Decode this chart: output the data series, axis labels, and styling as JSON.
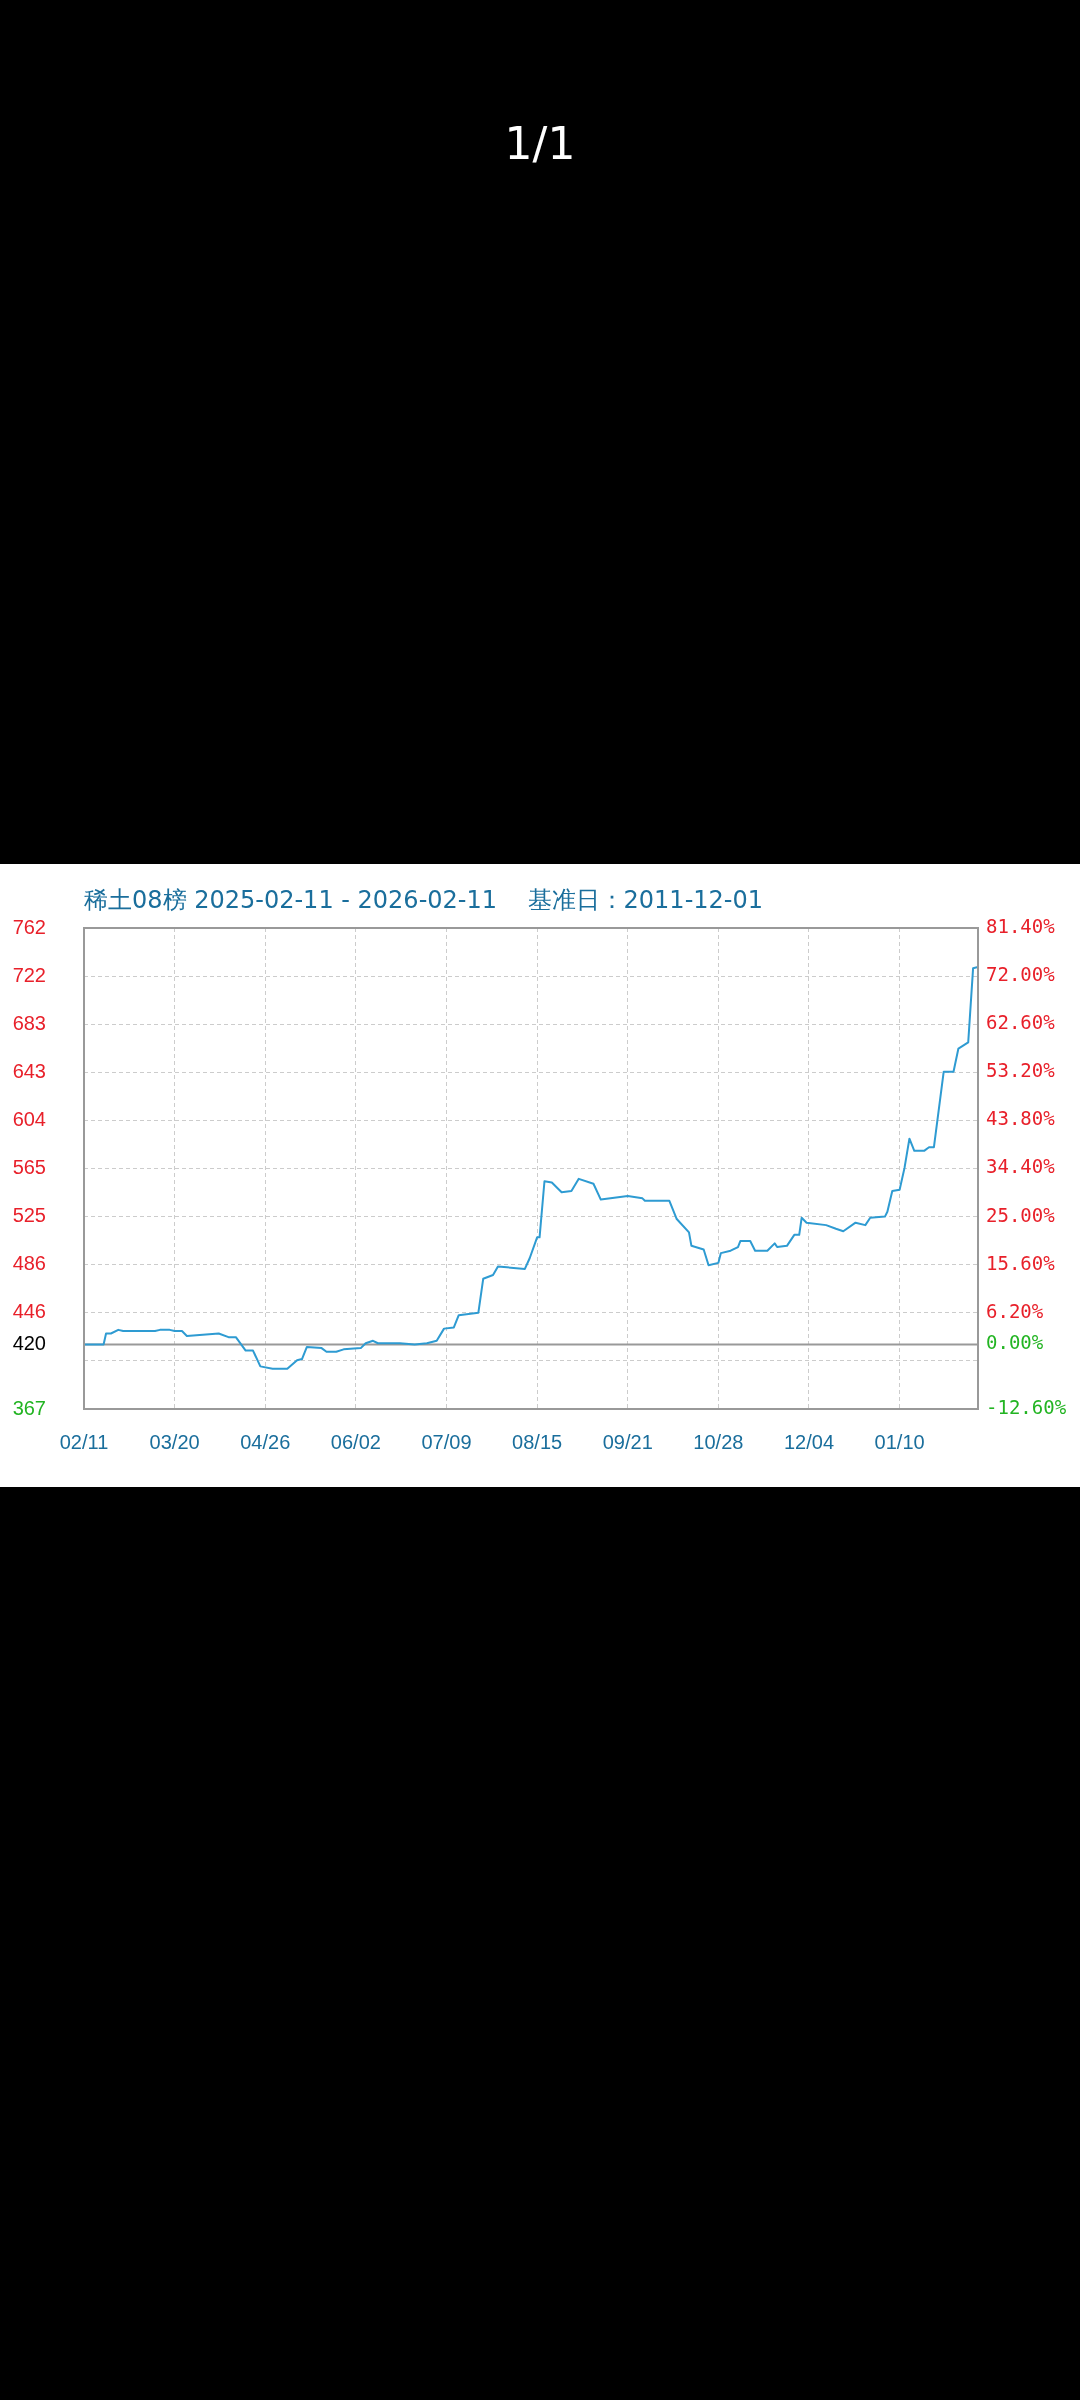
{
  "chart_data": {
    "type": "line",
    "title": "稀土08榜 2025-02-11 - 2026-02-11    基准日：2011-12-01",
    "annotations": [
      "1/1"
    ],
    "color": "#2e9bd2",
    "grid": true,
    "legend": false,
    "marker": "none",
    "line_style": "solid",
    "x": [
      "2025-02-11",
      "2025-02-19",
      "2025-02-20",
      "2025-02-22",
      "2025-02-25",
      "2025-02-27",
      "2025-03-12",
      "2025-03-14",
      "2025-03-18",
      "2025-03-20",
      "2025-03-23",
      "2025-03-25",
      "2025-04-07",
      "2025-04-11",
      "2025-04-14",
      "2025-04-18",
      "2025-04-21",
      "2025-04-24",
      "2025-04-29",
      "2025-05-05",
      "2025-05-09",
      "2025-05-11",
      "2025-05-13",
      "2025-05-19",
      "2025-05-21",
      "2025-05-25",
      "2025-05-28",
      "2025-06-04",
      "2025-06-06",
      "2025-06-09",
      "2025-06-11",
      "2025-06-17",
      "2025-06-20",
      "2025-06-26",
      "2025-07-01",
      "2025-07-05",
      "2025-07-08",
      "2025-07-12",
      "2025-07-14",
      "2025-07-22",
      "2025-07-24",
      "2025-07-28",
      "2025-07-30",
      "2025-08-10",
      "2025-08-12",
      "2025-08-15",
      "2025-08-16",
      "2025-08-18",
      "2025-08-21",
      "2025-08-25",
      "2025-08-29",
      "2025-09-01",
      "2025-09-07",
      "2025-09-10",
      "2025-09-21",
      "2025-09-27",
      "2025-09-28",
      "2025-10-08",
      "2025-10-11",
      "2025-10-16",
      "2025-10-17",
      "2025-10-22",
      "2025-10-24",
      "2025-10-28",
      "2025-10-29",
      "2025-11-02",
      "2025-11-05",
      "2025-11-06",
      "2025-11-10",
      "2025-11-12",
      "2025-11-17",
      "2025-11-20",
      "2025-11-21",
      "2025-11-25",
      "2025-11-28",
      "2025-11-30",
      "2025-12-01",
      "2025-12-03",
      "2025-12-11",
      "2025-12-15",
      "2025-12-18",
      "2025-12-23",
      "2025-12-27",
      "2025-12-29",
      "2026-01-04",
      "2026-01-05",
      "2026-01-07",
      "2026-01-10",
      "2026-01-12",
      "2026-01-14",
      "2026-01-16",
      "2026-01-20",
      "2026-01-22",
      "2026-01-24",
      "2026-01-28",
      "2026-02-01",
      "2026-02-03",
      "2026-02-07",
      "2026-02-09",
      "2026-02-11"
    ],
    "values": [
      420,
      420,
      429,
      429,
      432,
      431,
      431,
      432,
      432,
      431,
      431,
      427,
      429,
      426,
      426,
      415,
      415,
      402,
      400,
      400,
      407,
      408,
      418,
      417,
      414,
      414,
      416,
      417,
      421,
      423,
      421,
      421,
      421,
      420,
      421,
      423,
      433,
      434,
      444,
      446,
      474,
      477,
      484,
      482,
      491,
      508,
      508,
      554,
      553,
      545,
      546,
      556,
      552,
      539,
      542,
      540,
      538,
      538,
      523,
      512,
      501,
      498,
      485,
      487,
      495,
      497,
      500,
      505,
      505,
      497,
      497,
      503,
      500,
      501,
      510,
      510,
      524,
      520,
      518,
      515,
      513,
      520,
      518,
      524,
      525,
      529,
      546,
      547,
      565,
      589,
      579,
      579,
      582,
      582,
      644,
      644,
      663,
      668,
      729,
      730
    ],
    "xlim": [
      "2025-02-11",
      "2026-02-11"
    ],
    "xticks": [
      {
        "value": "2025-02-11",
        "label": "02/11"
      },
      {
        "value": "2025-03-20",
        "label": "03/20"
      },
      {
        "value": "2025-04-26",
        "label": "04/26"
      },
      {
        "value": "2025-06-02",
        "label": "06/02"
      },
      {
        "value": "2025-07-09",
        "label": "07/09"
      },
      {
        "value": "2025-08-15",
        "label": "08/15"
      },
      {
        "value": "2025-09-21",
        "label": "09/21"
      },
      {
        "value": "2025-10-28",
        "label": "10/28"
      },
      {
        "value": "2025-12-04",
        "label": "12/04"
      },
      {
        "value": "2026-01-10",
        "label": "01/10"
      }
    ],
    "ylim": [
      367,
      762
    ],
    "yticks": [
      367,
      {
        "value": 406.5,
        "label": null
      },
      420,
      446,
      {
        "value": 485.5,
        "label": "486"
      },
      525,
      {
        "value": 564.5,
        "label": "565"
      },
      604,
      {
        "value": 643.5,
        "label": "643"
      },
      683,
      {
        "value": 722.5,
        "label": "722"
      },
      762
    ],
    "y2lim": [
      -12.6,
      81.4
    ],
    "y2ticks": [
      {
        "value": -12.6,
        "label": "-12.60%"
      },
      {
        "value": 0,
        "label": "0.00%"
      },
      {
        "value": 6.2,
        "label": "6.20%"
      },
      {
        "value": 15.6,
        "label": "15.60%"
      },
      {
        "value": 25,
        "label": "25.00%"
      },
      {
        "value": 34.4,
        "label": "34.40%"
      },
      {
        "value": 43.8,
        "label": "43.80%"
      },
      {
        "value": 53.2,
        "label": "53.20%"
      },
      {
        "value": 62.6,
        "label": "62.60%"
      },
      {
        "value": 72,
        "label": "72.00%"
      },
      {
        "value": 81.4,
        "label": "81.40%"
      }
    ],
    "ref_lines": [
      {
        "axis": "y",
        "value": 420,
        "color": "#999999"
      }
    ]
  }
}
